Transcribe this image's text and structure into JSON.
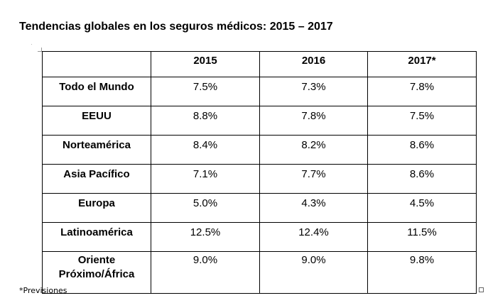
{
  "title": "Tendencias globales en los seguros médicos: 2015 – 2017",
  "table": {
    "headers": [
      "",
      "2015",
      "2016",
      "2017*"
    ],
    "rows": [
      {
        "region": "Todo el Mundo",
        "values": [
          "7.5%",
          "7.3%",
          "7.8%"
        ]
      },
      {
        "region": "EEUU",
        "values": [
          "8.8%",
          "7.8%",
          "7.5%"
        ]
      },
      {
        "region": "Norteamérica",
        "values": [
          "8.4%",
          "8.2%",
          "8.6%"
        ]
      },
      {
        "region": "Asia Pacífico",
        "values": [
          "7.1%",
          "7.7%",
          "8.6%"
        ]
      },
      {
        "region": "Europa",
        "values": [
          "5.0%",
          "4.3%",
          "4.5%"
        ]
      },
      {
        "region": "Latinoamérica",
        "values": [
          "12.5%",
          "12.4%",
          "11.5%"
        ]
      },
      {
        "region_line1": "Oriente",
        "region_line2": "Próximo/África",
        "values": [
          "9.0%",
          "9.0%",
          "9.8%"
        ]
      }
    ]
  },
  "footnote": "*Previsiones"
}
